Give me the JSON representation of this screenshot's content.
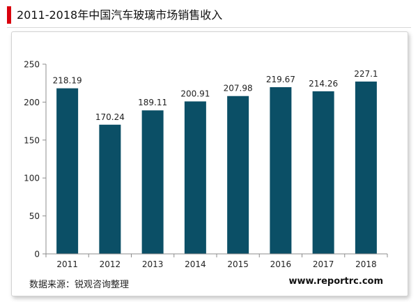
{
  "header": {
    "title": "2011-2018年中国汽车玻璃市场销售收入"
  },
  "footer": {
    "source": "数据来源：锐观咨询整理",
    "website": "www.reportrc.com"
  },
  "colors": {
    "bar": "#0b4f66",
    "accent": "#d9000d"
  },
  "chart_data": {
    "type": "bar",
    "categories": [
      "2011",
      "2012",
      "2013",
      "2014",
      "2015",
      "2016",
      "2017",
      "2018"
    ],
    "values": [
      218.19,
      170.24,
      189.11,
      200.91,
      207.98,
      219.67,
      214.26,
      227.1
    ],
    "value_labels": [
      "218.19",
      "170.24",
      "189.11",
      "200.91",
      "207.98",
      "219.67",
      "214.26",
      "227.1"
    ],
    "title": "2011-2018年中国汽车玻璃市场销售收入",
    "xlabel": "",
    "ylabel": "",
    "ylim": [
      0,
      250
    ],
    "yticks": [
      0,
      50,
      100,
      150,
      200,
      250
    ],
    "grid": false,
    "legend": "none"
  }
}
